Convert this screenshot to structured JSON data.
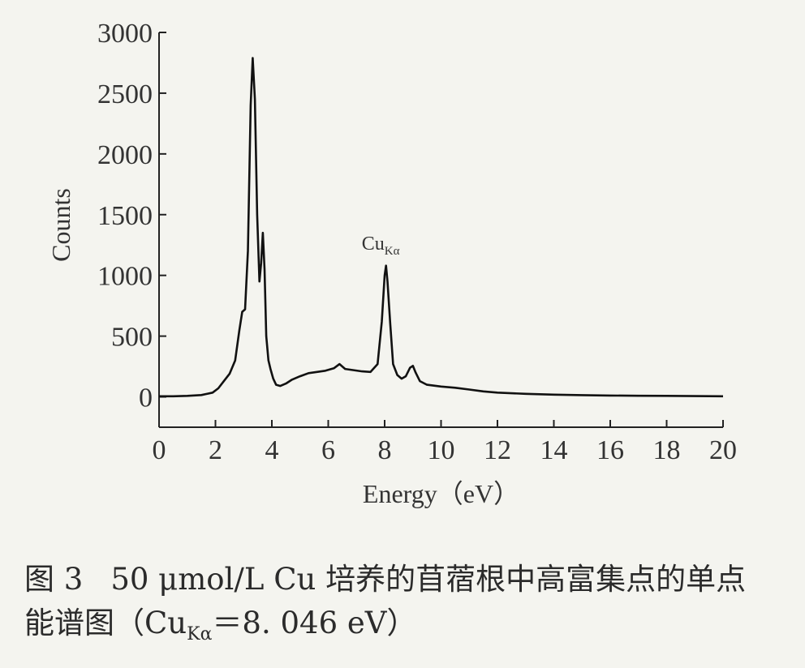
{
  "chart_data": {
    "type": "line",
    "xlabel": "Energy（eV）",
    "ylabel": "Counts",
    "xlim": [
      0,
      20
    ],
    "ylim": [
      -250,
      3000
    ],
    "x_ticks": [
      0,
      2,
      4,
      6,
      8,
      10,
      12,
      14,
      16,
      18,
      20
    ],
    "y_ticks": [
      0,
      500,
      1000,
      1500,
      2000,
      2500,
      3000
    ],
    "grid": false,
    "color": "#111111",
    "series": [
      {
        "x": [
          0,
          0.5,
          1.0,
          1.5,
          1.9,
          2.1,
          2.3,
          2.5,
          2.7,
          2.85,
          2.95,
          3.05,
          3.15,
          3.25,
          3.32,
          3.4,
          3.48,
          3.56,
          3.62,
          3.68,
          3.74,
          3.8,
          3.88,
          3.95,
          4.05,
          4.15,
          4.3,
          4.5,
          4.7,
          5.0,
          5.3,
          5.6,
          5.9,
          6.2,
          6.4,
          6.6,
          6.9,
          7.2,
          7.5,
          7.75,
          7.9,
          8.0,
          8.05,
          8.1,
          8.2,
          8.3,
          8.45,
          8.6,
          8.75,
          8.9,
          9.0,
          9.1,
          9.25,
          9.5,
          10.0,
          10.5,
          11.0,
          11.5,
          12.0,
          13.0,
          14.0,
          15.0,
          16.0,
          17.0,
          18.0,
          19.0,
          20.0
        ],
        "y": [
          5,
          5,
          8,
          15,
          35,
          70,
          130,
          190,
          300,
          550,
          700,
          720,
          1200,
          2400,
          2790,
          2450,
          1500,
          950,
          1100,
          1350,
          1050,
          500,
          300,
          230,
          150,
          100,
          90,
          110,
          140,
          170,
          195,
          205,
          215,
          235,
          270,
          230,
          220,
          210,
          205,
          270,
          620,
          1000,
          1080,
          950,
          600,
          270,
          180,
          150,
          170,
          240,
          255,
          200,
          130,
          100,
          85,
          75,
          60,
          45,
          35,
          25,
          18,
          14,
          11,
          9,
          8,
          6,
          5
        ]
      }
    ],
    "annotations": [
      {
        "text": "Cu",
        "subscript": "Kα",
        "x": 8.05,
        "y": 1150
      }
    ]
  },
  "caption": {
    "figure_number": "图 3",
    "line1_text": "50 μmol/L Cu 培养的苜蓿根中高富集点的单点",
    "line2_prefix": "能谱图（Cu",
    "line2_subscript": "Kα",
    "line2_suffix": "＝8. 046 eV）"
  }
}
